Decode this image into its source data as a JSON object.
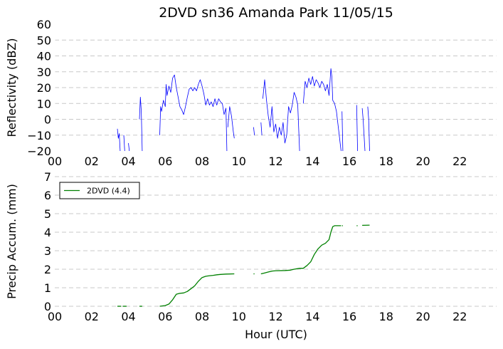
{
  "chart_data": [
    {
      "type": "line",
      "title": "2DVD sn36 Amanda Park 11/05/15",
      "xlabel": "",
      "ylabel": "Reflectivity (dBZ)",
      "xlim": [
        0,
        24
      ],
      "ylim": [
        -20,
        60
      ],
      "x_ticks": [
        0,
        2,
        4,
        6,
        8,
        10,
        12,
        14,
        16,
        18,
        20,
        22
      ],
      "x_tick_labels": [
        "00",
        "02",
        "04",
        "06",
        "08",
        "10",
        "12",
        "14",
        "16",
        "18",
        "20",
        "22"
      ],
      "y_ticks": [
        -20,
        -10,
        0,
        10,
        20,
        30,
        40,
        50,
        60
      ],
      "y_tick_labels": [
        "−20",
        "−10",
        "0",
        "10",
        "20",
        "30",
        "40",
        "50",
        "60"
      ],
      "grid": "horizontal-dashed",
      "series": [
        {
          "color": "#0000ff",
          "segments": [
            [
              [
                3.4,
                -6
              ],
              [
                3.45,
                -12
              ],
              [
                3.5,
                -9
              ],
              [
                3.55,
                -20
              ]
            ],
            [
              [
                3.75,
                -10
              ],
              [
                3.8,
                -20
              ]
            ],
            [
              [
                4.0,
                -15
              ],
              [
                4.05,
                -20
              ]
            ],
            [
              [
                4.6,
                0
              ],
              [
                4.65,
                14
              ],
              [
                4.7,
                5
              ],
              [
                4.75,
                -20
              ]
            ],
            [
              [
                5.7,
                -10
              ],
              [
                5.75,
                8
              ],
              [
                5.8,
                5
              ],
              [
                5.9,
                12
              ],
              [
                6.0,
                8
              ],
              [
                6.05,
                22
              ],
              [
                6.1,
                15
              ],
              [
                6.2,
                21
              ],
              [
                6.3,
                17
              ],
              [
                6.4,
                26
              ],
              [
                6.5,
                28
              ],
              [
                6.6,
                20
              ],
              [
                6.7,
                14
              ],
              [
                6.8,
                8
              ],
              [
                6.9,
                6
              ],
              [
                7.0,
                3
              ],
              [
                7.1,
                8
              ],
              [
                7.2,
                14
              ],
              [
                7.3,
                19
              ],
              [
                7.4,
                20
              ],
              [
                7.5,
                18
              ],
              [
                7.6,
                20
              ],
              [
                7.7,
                18
              ],
              [
                7.8,
                22
              ],
              [
                7.9,
                25
              ],
              [
                8.0,
                21
              ],
              [
                8.1,
                16
              ],
              [
                8.2,
                9
              ],
              [
                8.3,
                13
              ],
              [
                8.4,
                9
              ],
              [
                8.5,
                11
              ],
              [
                8.6,
                8
              ],
              [
                8.7,
                13
              ],
              [
                8.8,
                9
              ],
              [
                8.9,
                13
              ],
              [
                9.0,
                11
              ],
              [
                9.1,
                10
              ],
              [
                9.2,
                3
              ],
              [
                9.3,
                7
              ],
              [
                9.35,
                -20
              ]
            ],
            [
              [
                9.4,
                -5
              ],
              [
                9.5,
                8
              ],
              [
                9.6,
                2
              ],
              [
                9.7,
                -8
              ],
              [
                9.75,
                -12
              ]
            ],
            [
              [
                10.8,
                -5
              ],
              [
                10.85,
                -10
              ]
            ],
            [
              [
                11.2,
                -2
              ],
              [
                11.25,
                -10
              ]
            ],
            [
              [
                11.3,
                13
              ],
              [
                11.4,
                25
              ],
              [
                11.5,
                12
              ],
              [
                11.6,
                2
              ],
              [
                11.7,
                -5
              ],
              [
                11.8,
                8
              ],
              [
                11.9,
                -8
              ],
              [
                12.0,
                -3
              ],
              [
                12.1,
                -12
              ],
              [
                12.2,
                -5
              ],
              [
                12.3,
                -10
              ],
              [
                12.4,
                -2
              ],
              [
                12.5,
                -15
              ],
              [
                12.6,
                -10
              ],
              [
                12.7,
                8
              ],
              [
                12.8,
                4
              ],
              [
                12.9,
                9
              ],
              [
                13.0,
                17
              ],
              [
                13.1,
                14
              ],
              [
                13.2,
                9
              ],
              [
                13.3,
                -20
              ]
            ],
            [
              [
                13.5,
                10
              ],
              [
                13.6,
                24
              ],
              [
                13.7,
                20
              ],
              [
                13.8,
                26
              ],
              [
                13.9,
                22
              ],
              [
                14.0,
                27
              ],
              [
                14.1,
                21
              ],
              [
                14.2,
                25
              ],
              [
                14.3,
                23
              ],
              [
                14.4,
                20
              ],
              [
                14.5,
                24
              ],
              [
                14.6,
                22
              ],
              [
                14.7,
                18
              ],
              [
                14.8,
                22
              ],
              [
                14.9,
                15
              ],
              [
                15.0,
                32
              ],
              [
                15.05,
                27
              ],
              [
                15.1,
                12
              ],
              [
                15.2,
                10
              ],
              [
                15.3,
                5
              ],
              [
                15.4,
                -5
              ],
              [
                15.5,
                -15
              ],
              [
                15.55,
                -20
              ]
            ],
            [
              [
                15.6,
                5
              ],
              [
                15.65,
                -20
              ]
            ],
            [
              [
                16.4,
                9
              ],
              [
                16.45,
                -20
              ]
            ],
            [
              [
                16.7,
                7
              ],
              [
                16.75,
                0
              ],
              [
                16.8,
                -10
              ],
              [
                16.85,
                -20
              ]
            ],
            [
              [
                17.0,
                8
              ],
              [
                17.05,
                0
              ],
              [
                17.1,
                -20
              ]
            ]
          ]
        }
      ]
    },
    {
      "type": "line",
      "title": "",
      "xlabel": "Hour (UTC)",
      "ylabel": "Precip Accum. (mm)",
      "xlim": [
        0,
        24
      ],
      "ylim": [
        0,
        7
      ],
      "x_ticks": [
        0,
        2,
        4,
        6,
        8,
        10,
        12,
        14,
        16,
        18,
        20,
        22
      ],
      "x_tick_labels": [
        "00",
        "02",
        "04",
        "06",
        "08",
        "10",
        "12",
        "14",
        "16",
        "18",
        "20",
        "22"
      ],
      "y_ticks": [
        0,
        1,
        2,
        3,
        4,
        5,
        6,
        7
      ],
      "y_tick_labels": [
        "0",
        "1",
        "2",
        "3",
        "4",
        "5",
        "6",
        "7"
      ],
      "grid": "horizontal-dashed",
      "legend": {
        "position": "top-left",
        "entries": [
          "2DVD (4.4)"
        ]
      },
      "series": [
        {
          "name": "2DVD (4.4)",
          "color": "#008000",
          "segments": [
            [
              [
                3.4,
                0.0
              ],
              [
                3.6,
                0.0
              ]
            ],
            [
              [
                3.7,
                0.0
              ],
              [
                3.9,
                0.0
              ]
            ],
            [
              [
                4.6,
                0.0
              ],
              [
                4.75,
                0.0
              ]
            ],
            [
              [
                5.7,
                0.0
              ],
              [
                6.0,
                0.04
              ],
              [
                6.2,
                0.12
              ],
              [
                6.4,
                0.35
              ],
              [
                6.6,
                0.65
              ],
              [
                6.8,
                0.7
              ],
              [
                7.0,
                0.72
              ],
              [
                7.2,
                0.8
              ],
              [
                7.4,
                0.95
              ],
              [
                7.6,
                1.1
              ],
              [
                7.8,
                1.35
              ],
              [
                8.0,
                1.55
              ],
              [
                8.2,
                1.62
              ],
              [
                8.4,
                1.65
              ],
              [
                8.6,
                1.67
              ],
              [
                8.8,
                1.7
              ],
              [
                9.0,
                1.72
              ],
              [
                9.3,
                1.74
              ],
              [
                9.75,
                1.75
              ]
            ],
            [
              [
                10.8,
                1.75
              ],
              [
                10.85,
                1.75
              ]
            ],
            [
              [
                11.2,
                1.75
              ],
              [
                11.4,
                1.8
              ],
              [
                11.6,
                1.85
              ],
              [
                11.8,
                1.9
              ],
              [
                12.0,
                1.92
              ],
              [
                12.5,
                1.93
              ],
              [
                12.8,
                1.95
              ],
              [
                13.0,
                2.0
              ],
              [
                13.3,
                2.05
              ],
              [
                13.5,
                2.05
              ],
              [
                13.7,
                2.2
              ],
              [
                13.9,
                2.4
              ],
              [
                14.1,
                2.8
              ],
              [
                14.3,
                3.1
              ],
              [
                14.5,
                3.3
              ],
              [
                14.7,
                3.4
              ],
              [
                14.9,
                3.6
              ],
              [
                15.0,
                4.0
              ],
              [
                15.1,
                4.3
              ],
              [
                15.2,
                4.35
              ],
              [
                15.55,
                4.35
              ]
            ],
            [
              [
                15.6,
                4.35
              ],
              [
                15.65,
                4.35
              ]
            ],
            [
              [
                16.4,
                4.35
              ],
              [
                16.45,
                4.35
              ]
            ],
            [
              [
                16.7,
                4.37
              ],
              [
                17.1,
                4.38
              ]
            ]
          ]
        }
      ]
    }
  ]
}
